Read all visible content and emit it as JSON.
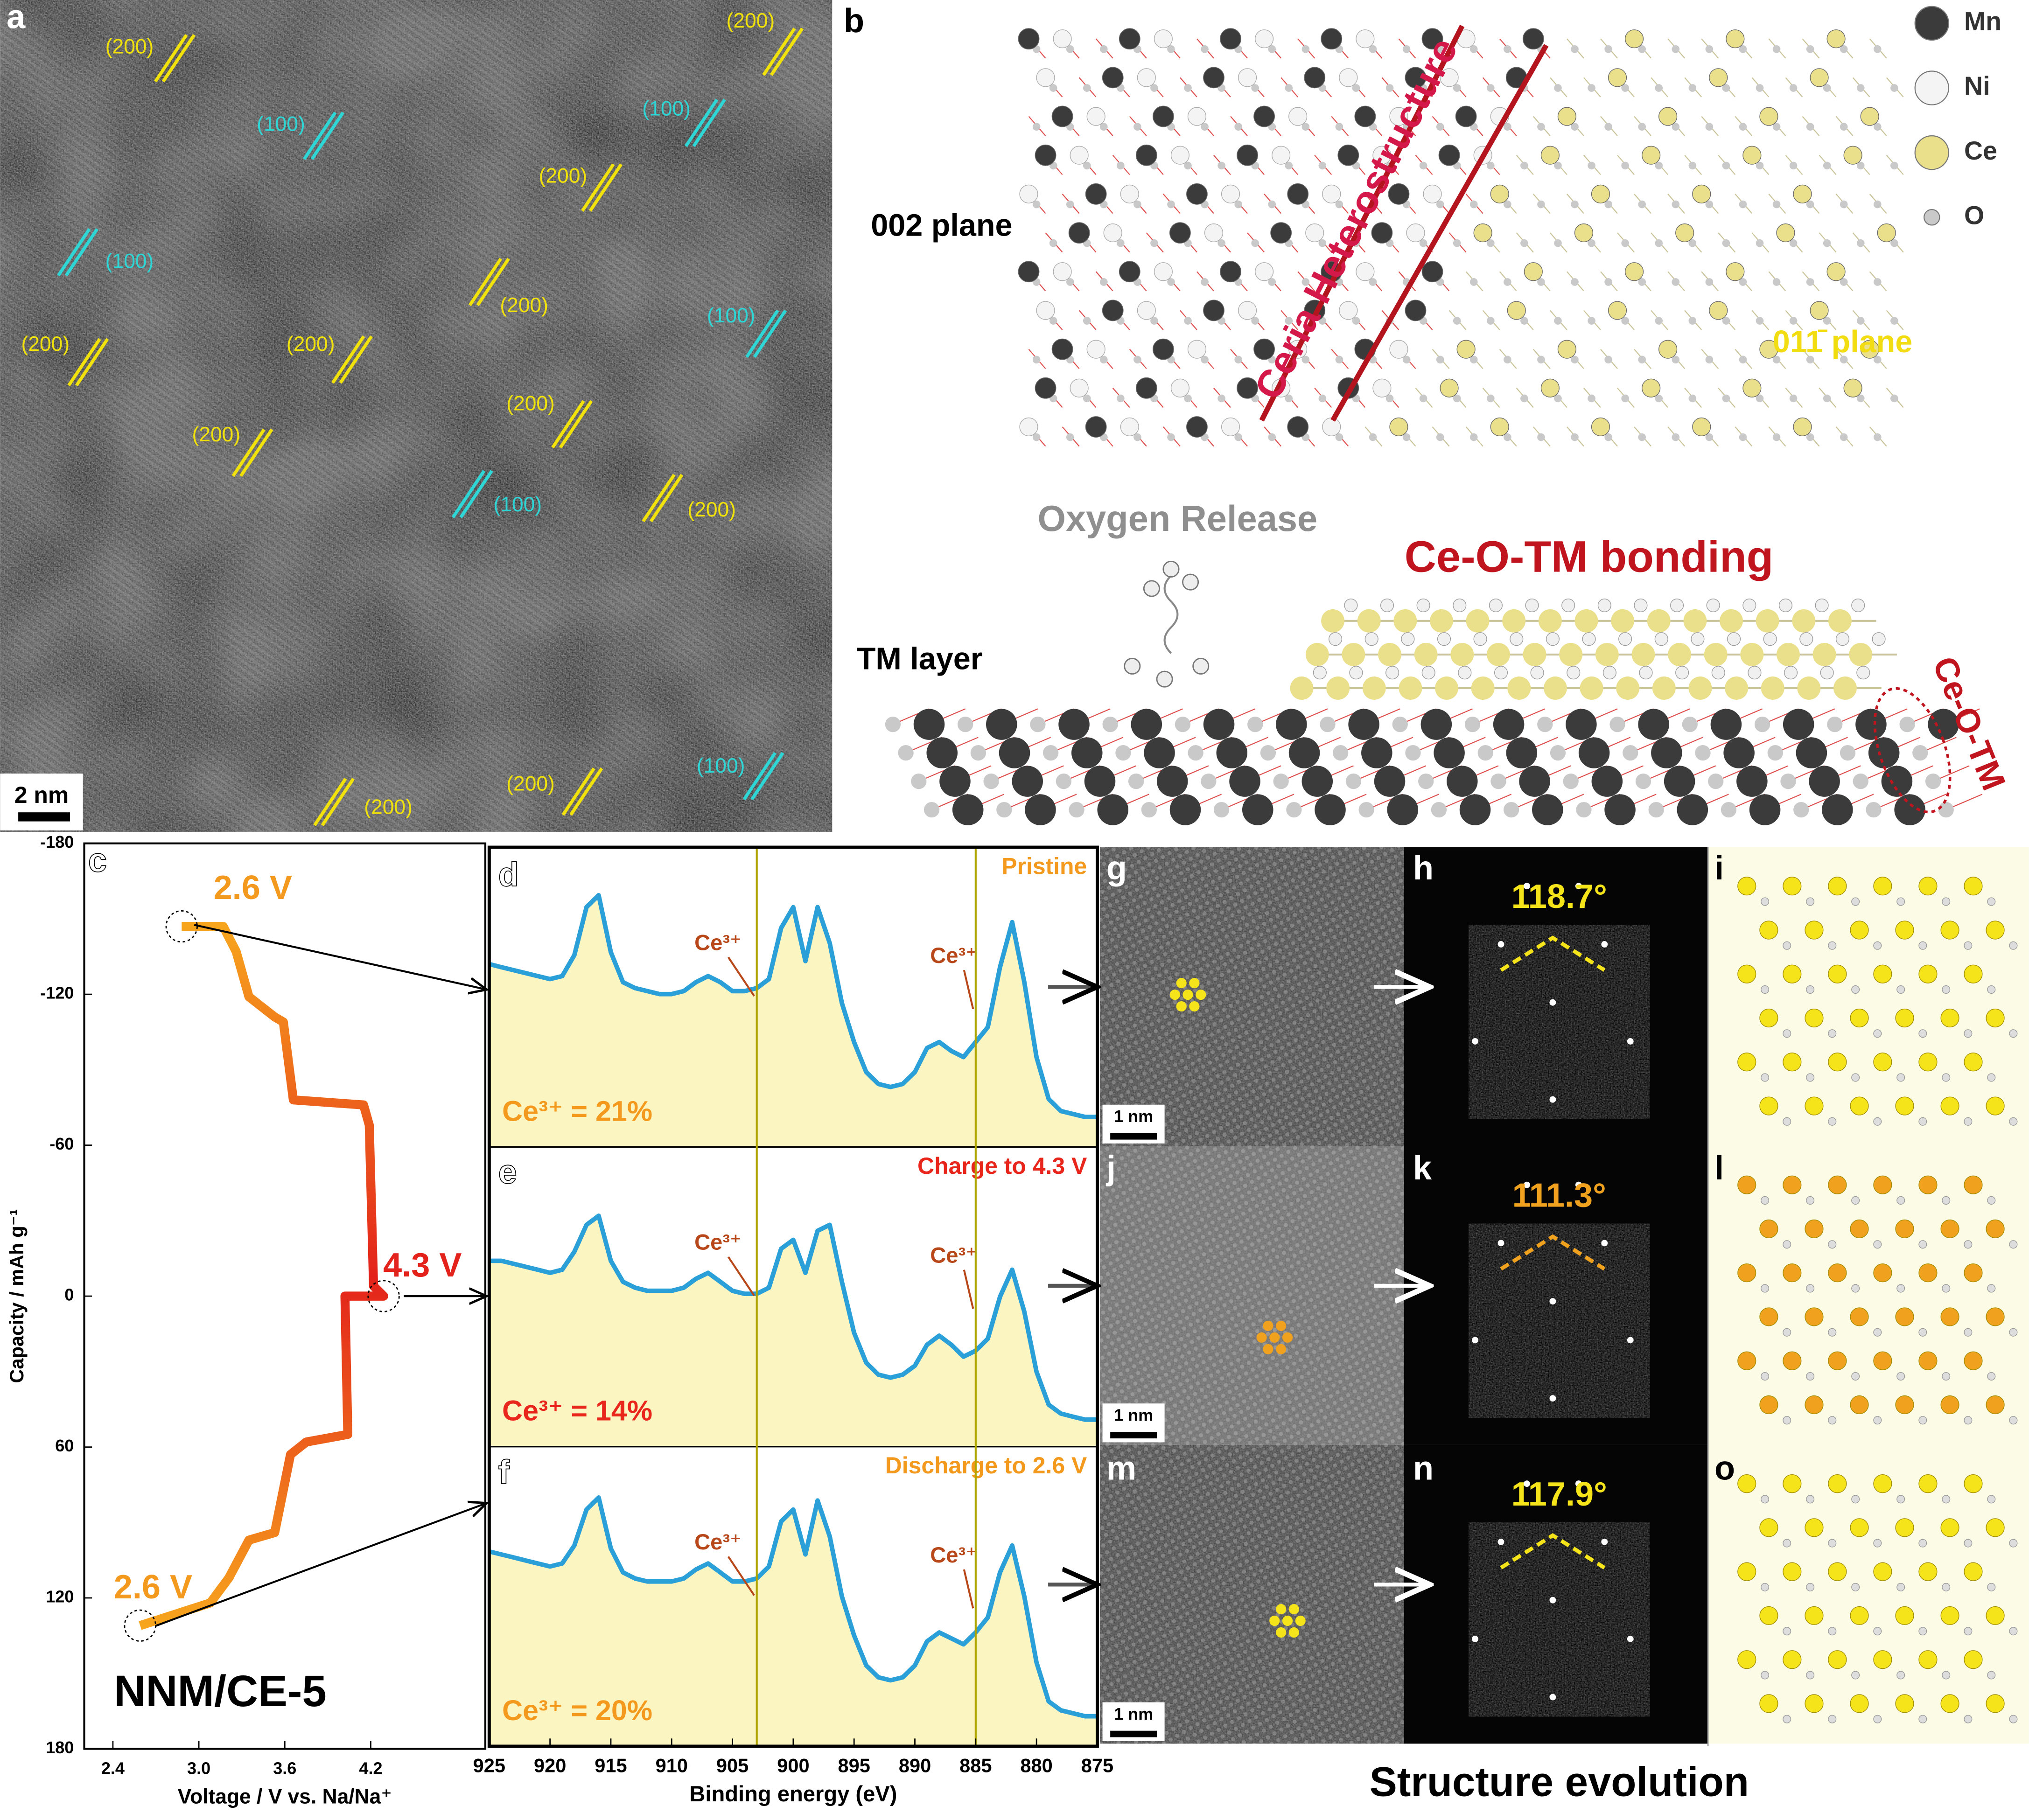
{
  "panel_labels": [
    "a",
    "b",
    "c",
    "d",
    "e",
    "f",
    "g",
    "h",
    "i",
    "j",
    "k",
    "l",
    "m",
    "n",
    "o"
  ],
  "panel_a": {
    "planes": [
      {
        "text": "(200)",
        "color": "#f2e20c"
      },
      {
        "text": "(100)",
        "color": "#2fd6d6"
      },
      {
        "text": "(200)",
        "color": "#f2e20c"
      },
      {
        "text": "(100)",
        "color": "#2fd6d6"
      },
      {
        "text": "(200)",
        "color": "#f2e20c"
      },
      {
        "text": "(100)",
        "color": "#2fd6d6"
      },
      {
        "text": "(200)",
        "color": "#f2e20c"
      },
      {
        "text": "(100)",
        "color": "#2fd6d6"
      },
      {
        "text": "(200)",
        "color": "#f2e20c"
      },
      {
        "text": "(200)",
        "color": "#f2e20c"
      },
      {
        "text": "(200)",
        "color": "#f2e20c"
      },
      {
        "text": "(200)",
        "color": "#f2e20c"
      },
      {
        "text": "(100)",
        "color": "#2fd6d6"
      },
      {
        "text": "(200)",
        "color": "#f2e20c"
      },
      {
        "text": "(100)",
        "color": "#2fd6d6"
      },
      {
        "text": "(200)",
        "color": "#f2e20c"
      },
      {
        "text": "(200)",
        "color": "#f2e20c"
      }
    ],
    "scale_bar": "2 nm"
  },
  "panel_b": {
    "legend": [
      {
        "name": "Mn",
        "color": "#3b3b3b"
      },
      {
        "name": "Ni",
        "color": "#f4f4f4"
      },
      {
        "name": "Ce",
        "color": "#eadf8a"
      },
      {
        "name": "O",
        "color": "#c9c9c9"
      }
    ],
    "plane_002": "002 plane",
    "ceria": "Ceria Heterostructure",
    "plane_011": "011̄ plane",
    "oxygen_release": "Oxygen Release",
    "bonding": "Ce-O-TM bonding",
    "tm_layer": "TM layer",
    "ce_o_tm": "Ce-O-TM"
  },
  "chart_data": [
    {
      "type": "line",
      "xlabel": "Voltage / V vs. Na/Na⁺",
      "ylabel": "Capacity / mAh g⁻¹",
      "x": [
        2.88,
        3.17,
        3.26,
        3.35,
        3.53,
        3.59,
        3.66,
        4.15,
        4.19,
        4.22,
        4.29,
        4.02,
        4.04,
        3.75,
        3.64,
        3.53,
        3.35,
        3.21,
        3.08,
        2.59
      ],
      "values": [
        -147,
        -147,
        -137,
        -119,
        -111,
        -109,
        -78,
        -76,
        -68,
        -4,
        0,
        0,
        55,
        58,
        63,
        94,
        97,
        112,
        122,
        131
      ],
      "colors": [
        "#f7a51d",
        "#e3221b",
        "#f7a51d"
      ],
      "xlim": [
        2.2,
        5.0
      ],
      "ylim": [
        180,
        -180
      ],
      "xticks": [
        2.4,
        {
          "value": 3,
          "label": "3.0"
        },
        3.6,
        4.2
      ],
      "yticks": [
        -180,
        -120,
        -60,
        0,
        60,
        120,
        180
      ],
      "annotations": [
        {
          "text": "2.6 V",
          "color": "#f39a1e"
        },
        {
          "text": "4.3 V",
          "color": "#e3221b"
        },
        {
          "text": "2.6 V",
          "color": "#f39a1e"
        }
      ],
      "sample": "NNM/CE-5"
    },
    {
      "type": "xps",
      "xlabel": "Binding energy (eV)",
      "xlim": [
        925,
        875
      ],
      "xticks": [
        925,
        920,
        915,
        910,
        905,
        900,
        895,
        890,
        885,
        880,
        875
      ],
      "x": [
        925,
        924,
        923,
        922,
        921,
        920,
        919,
        918,
        917,
        916,
        915,
        914,
        913,
        912,
        911,
        910,
        909,
        908,
        907,
        906,
        905,
        904,
        903,
        902,
        901,
        900,
        899,
        898,
        897,
        896,
        895,
        894,
        893,
        892,
        891,
        890,
        889,
        888,
        887,
        886,
        885,
        884,
        883,
        882,
        881,
        880,
        879,
        878,
        877,
        876,
        875
      ],
      "reference_lines": [
        903,
        885
      ],
      "line_color": "#2a9fd8",
      "fill_color": "#fbf5c2",
      "peak_label": "Ce³⁺",
      "series": [
        {
          "name": "Pristine",
          "color": "#f39a1e",
          "annotation": "Ce³⁺ = 21%",
          "values": [
            0.61,
            0.6,
            0.59,
            0.58,
            0.57,
            0.56,
            0.57,
            0.64,
            0.8,
            0.84,
            0.65,
            0.55,
            0.53,
            0.52,
            0.51,
            0.51,
            0.52,
            0.55,
            0.57,
            0.55,
            0.52,
            0.52,
            0.53,
            0.56,
            0.73,
            0.8,
            0.62,
            0.8,
            0.68,
            0.48,
            0.35,
            0.25,
            0.21,
            0.2,
            0.21,
            0.25,
            0.33,
            0.35,
            0.32,
            0.3,
            0.35,
            0.4,
            0.6,
            0.75,
            0.55,
            0.3,
            0.16,
            0.12,
            0.11,
            0.1,
            0.1
          ]
        },
        {
          "name": "Charge to 4.3 V",
          "color": "#e8261c",
          "annotation": "Ce³⁺ = 14%",
          "values": [
            0.62,
            0.62,
            0.61,
            0.6,
            0.59,
            0.58,
            0.59,
            0.65,
            0.74,
            0.77,
            0.62,
            0.55,
            0.53,
            0.52,
            0.52,
            0.52,
            0.53,
            0.56,
            0.58,
            0.55,
            0.52,
            0.51,
            0.51,
            0.53,
            0.66,
            0.69,
            0.58,
            0.72,
            0.74,
            0.55,
            0.38,
            0.28,
            0.24,
            0.23,
            0.24,
            0.27,
            0.34,
            0.37,
            0.34,
            0.3,
            0.32,
            0.36,
            0.5,
            0.59,
            0.45,
            0.25,
            0.14,
            0.11,
            0.1,
            0.09,
            0.09
          ]
        },
        {
          "name": "Discharge to 2.6 V",
          "color": "#f39a1e",
          "annotation": "Ce³⁺ = 20%",
          "values": [
            0.65,
            0.64,
            0.63,
            0.62,
            0.61,
            0.6,
            0.61,
            0.67,
            0.79,
            0.83,
            0.66,
            0.58,
            0.56,
            0.55,
            0.55,
            0.55,
            0.56,
            0.59,
            0.61,
            0.58,
            0.55,
            0.55,
            0.56,
            0.6,
            0.75,
            0.79,
            0.64,
            0.82,
            0.7,
            0.5,
            0.37,
            0.27,
            0.23,
            0.22,
            0.23,
            0.27,
            0.35,
            0.38,
            0.36,
            0.34,
            0.38,
            0.43,
            0.58,
            0.67,
            0.5,
            0.28,
            0.15,
            0.12,
            0.11,
            0.1,
            0.1
          ]
        }
      ]
    }
  ],
  "structure": {
    "title": "Structure evolution",
    "angles": [
      {
        "text": "118.7°",
        "color": "#f5e41a"
      },
      {
        "text": "111.3°",
        "color": "#f0a21e"
      },
      {
        "text": "117.9°",
        "color": "#f5e41a"
      }
    ],
    "scale_bar": "1 nm"
  }
}
